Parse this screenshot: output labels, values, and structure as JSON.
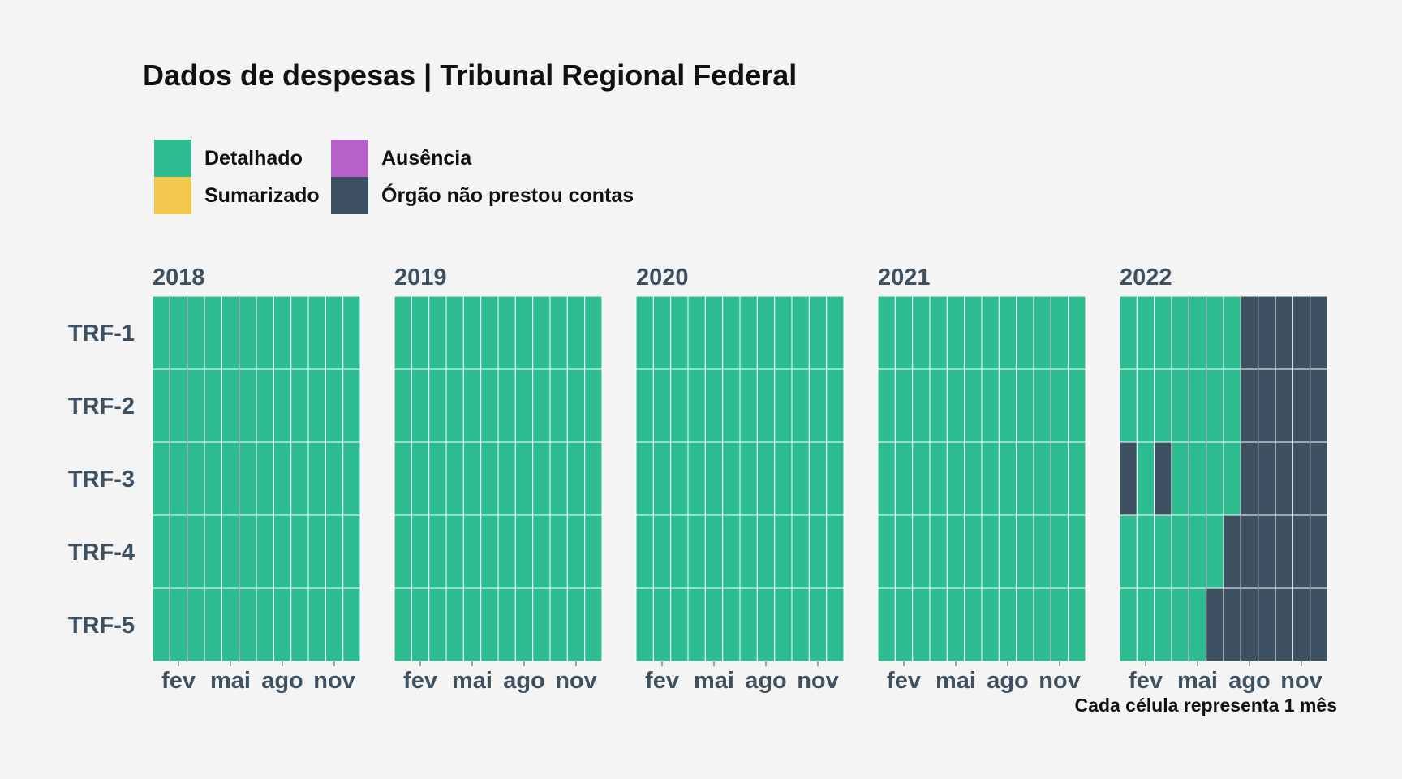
{
  "title": "Dados de despesas | Tribunal Regional Federal",
  "caption": "Cada célula representa 1 mês",
  "legend": [
    {
      "label": "Detalhado",
      "color": "#2ebd91"
    },
    {
      "label": "Ausência",
      "color": "#b561c9"
    },
    {
      "label": "Sumarizado",
      "color": "#f2c94c"
    },
    {
      "label": "Órgão não prestou contas",
      "color": "#3d5163"
    }
  ],
  "chart_data": {
    "type": "heatmap",
    "facets": [
      "2018",
      "2019",
      "2020",
      "2021",
      "2022"
    ],
    "rows": [
      "TRF-1",
      "TRF-2",
      "TRF-3",
      "TRF-4",
      "TRF-5"
    ],
    "months": 12,
    "x_tick_labels": [
      {
        "month": 2,
        "label": "fev"
      },
      {
        "month": 5,
        "label": "mai"
      },
      {
        "month": 8,
        "label": "ago"
      },
      {
        "month": 11,
        "label": "nov"
      }
    ],
    "categories": [
      "Detalhado",
      "Sumarizado",
      "Ausência",
      "Órgão não prestou contas"
    ],
    "colors": {
      "Detalhado": "#2ebd91",
      "Sumarizado": "#f2c94c",
      "Ausência": "#b561c9",
      "Órgão não prestou contas": "#3d5163"
    },
    "values": {
      "2018": {
        "TRF-1": [
          "D",
          "D",
          "D",
          "D",
          "D",
          "D",
          "D",
          "D",
          "D",
          "D",
          "D",
          "D"
        ],
        "TRF-2": [
          "D",
          "D",
          "D",
          "D",
          "D",
          "D",
          "D",
          "D",
          "D",
          "D",
          "D",
          "D"
        ],
        "TRF-3": [
          "D",
          "D",
          "D",
          "D",
          "D",
          "D",
          "D",
          "D",
          "D",
          "D",
          "D",
          "D"
        ],
        "TRF-4": [
          "D",
          "D",
          "D",
          "D",
          "D",
          "D",
          "D",
          "D",
          "D",
          "D",
          "D",
          "D"
        ],
        "TRF-5": [
          "D",
          "D",
          "D",
          "D",
          "D",
          "D",
          "D",
          "D",
          "D",
          "D",
          "D",
          "D"
        ]
      },
      "2019": {
        "TRF-1": [
          "D",
          "D",
          "D",
          "D",
          "D",
          "D",
          "D",
          "D",
          "D",
          "D",
          "D",
          "D"
        ],
        "TRF-2": [
          "D",
          "D",
          "D",
          "D",
          "D",
          "D",
          "D",
          "D",
          "D",
          "D",
          "D",
          "D"
        ],
        "TRF-3": [
          "D",
          "D",
          "D",
          "D",
          "D",
          "D",
          "D",
          "D",
          "D",
          "D",
          "D",
          "D"
        ],
        "TRF-4": [
          "D",
          "D",
          "D",
          "D",
          "D",
          "D",
          "D",
          "D",
          "D",
          "D",
          "D",
          "D"
        ],
        "TRF-5": [
          "D",
          "D",
          "D",
          "D",
          "D",
          "D",
          "D",
          "D",
          "D",
          "D",
          "D",
          "D"
        ]
      },
      "2020": {
        "TRF-1": [
          "D",
          "D",
          "D",
          "D",
          "D",
          "D",
          "D",
          "D",
          "D",
          "D",
          "D",
          "D"
        ],
        "TRF-2": [
          "D",
          "D",
          "D",
          "D",
          "D",
          "D",
          "D",
          "D",
          "D",
          "D",
          "D",
          "D"
        ],
        "TRF-3": [
          "D",
          "D",
          "D",
          "D",
          "D",
          "D",
          "D",
          "D",
          "D",
          "D",
          "D",
          "D"
        ],
        "TRF-4": [
          "D",
          "D",
          "D",
          "D",
          "D",
          "D",
          "D",
          "D",
          "D",
          "D",
          "D",
          "D"
        ],
        "TRF-5": [
          "D",
          "D",
          "D",
          "D",
          "D",
          "D",
          "D",
          "D",
          "D",
          "D",
          "D",
          "D"
        ]
      },
      "2021": {
        "TRF-1": [
          "D",
          "D",
          "D",
          "D",
          "D",
          "D",
          "D",
          "D",
          "D",
          "D",
          "D",
          "D"
        ],
        "TRF-2": [
          "D",
          "D",
          "D",
          "D",
          "D",
          "D",
          "D",
          "D",
          "D",
          "D",
          "D",
          "D"
        ],
        "TRF-3": [
          "D",
          "D",
          "D",
          "D",
          "D",
          "D",
          "D",
          "D",
          "D",
          "D",
          "D",
          "D"
        ],
        "TRF-4": [
          "D",
          "D",
          "D",
          "D",
          "D",
          "D",
          "D",
          "D",
          "D",
          "D",
          "D",
          "D"
        ],
        "TRF-5": [
          "D",
          "D",
          "D",
          "D",
          "D",
          "D",
          "D",
          "D",
          "D",
          "D",
          "D",
          "D"
        ]
      },
      "2022": {
        "TRF-1": [
          "D",
          "D",
          "D",
          "D",
          "D",
          "D",
          "D",
          "N",
          "N",
          "N",
          "N",
          "N"
        ],
        "TRF-2": [
          "D",
          "D",
          "D",
          "D",
          "D",
          "D",
          "D",
          "N",
          "N",
          "N",
          "N",
          "N"
        ],
        "TRF-3": [
          "N",
          "D",
          "N",
          "D",
          "D",
          "D",
          "D",
          "N",
          "N",
          "N",
          "N",
          "N"
        ],
        "TRF-4": [
          "D",
          "D",
          "D",
          "D",
          "D",
          "D",
          "N",
          "N",
          "N",
          "N",
          "N",
          "N"
        ],
        "TRF-5": [
          "D",
          "D",
          "D",
          "D",
          "D",
          "N",
          "N",
          "N",
          "N",
          "N",
          "N",
          "N"
        ]
      }
    },
    "value_codes": {
      "D": "Detalhado",
      "N": "Órgão não prestou contas"
    }
  }
}
